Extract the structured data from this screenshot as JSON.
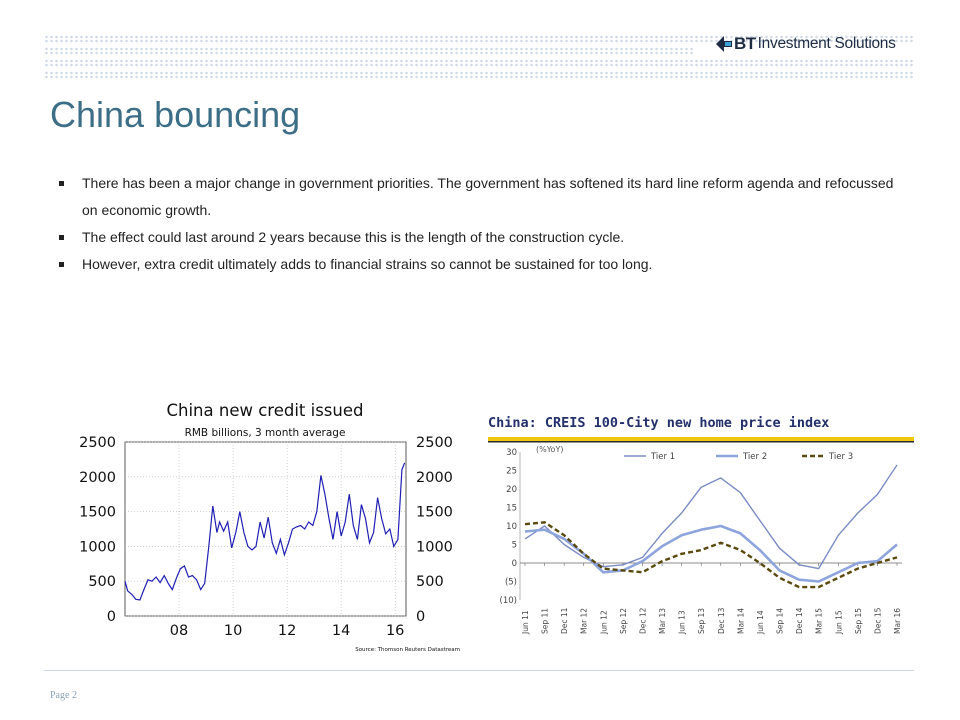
{
  "header": {
    "logo_bt": "BT",
    "logo_text": "Investment Solutions"
  },
  "title": "China bouncing",
  "bullets": [
    "There has been a major change in government priorities.  The government has softened its hard line reform agenda and refocussed on economic growth.",
    "The effect could last around 2 years because this is the length of the construction cycle.",
    "However, extra credit ultimately adds to financial strains so cannot be sustained for too long."
  ],
  "chart_data": [
    {
      "type": "line",
      "title": "China new credit issued",
      "subtitle": "RMB billions, 3 month average",
      "source": "Source: Thomson Reuters Datastream",
      "y_ticks": [
        "2500",
        "2000",
        "1500",
        "1000",
        "500",
        "0"
      ],
      "x_ticks": [
        "08",
        "10",
        "12",
        "14",
        "16"
      ],
      "ylim": [
        0,
        2500
      ],
      "xlim": [
        2006.0,
        2016.4
      ],
      "line_color": "#1f1fb4",
      "series": [
        {
          "x": [
            2006.0,
            2006.1,
            2006.25,
            2006.4,
            2006.55,
            2006.7,
            2006.85,
            2007.0,
            2007.15,
            2007.3,
            2007.45,
            2007.6,
            2007.75,
            2007.9,
            2008.05,
            2008.2,
            2008.35,
            2008.5,
            2008.65,
            2008.8,
            2008.95,
            2009.1,
            2009.25,
            2009.4,
            2009.5,
            2009.65,
            2009.8,
            2009.95,
            2010.1,
            2010.25,
            2010.4,
            2010.55,
            2010.7,
            2010.85,
            2011.0,
            2011.15,
            2011.3,
            2011.45,
            2011.6,
            2011.75,
            2011.9,
            2012.05,
            2012.2,
            2012.35,
            2012.5,
            2012.65,
            2012.8,
            2012.95,
            2013.1,
            2013.25,
            2013.4,
            2013.55,
            2013.7,
            2013.85,
            2014.0,
            2014.15,
            2014.3,
            2014.45,
            2014.6,
            2014.75,
            2014.9,
            2015.05,
            2015.2,
            2015.35,
            2015.5,
            2015.65,
            2015.8,
            2015.95,
            2016.1,
            2016.25,
            2016.35
          ],
          "y": [
            500,
            360,
            310,
            240,
            230,
            380,
            520,
            500,
            560,
            480,
            580,
            470,
            380,
            540,
            680,
            720,
            560,
            580,
            520,
            380,
            470,
            1000,
            1580,
            1200,
            1350,
            1220,
            1350,
            980,
            1200,
            1500,
            1200,
            1000,
            950,
            1000,
            1350,
            1120,
            1420,
            1050,
            900,
            1100,
            880,
            1050,
            1250,
            1280,
            1300,
            1250,
            1350,
            1300,
            1500,
            2020,
            1750,
            1400,
            1100,
            1500,
            1150,
            1350,
            1750,
            1300,
            1100,
            1600,
            1400,
            1050,
            1200,
            1700,
            1400,
            1180,
            1250,
            1000,
            1100,
            2100,
            2200
          ]
        }
      ]
    },
    {
      "type": "line",
      "title": "China: CREIS 100-City new home price index",
      "ylabel": "(%YoY)",
      "y_ticks": [
        "30",
        "25",
        "20",
        "15",
        "10",
        "5",
        "0",
        "(5)",
        "(10)"
      ],
      "ylim": [
        -10,
        30
      ],
      "x_ticks": [
        "Jun 11",
        "Sep 11",
        "Dec 11",
        "Mar 12",
        "Jun 12",
        "Sep 12",
        "Dec 12",
        "Mar 13",
        "Jun 13",
        "Sep 13",
        "Dec 13",
        "Mar 14",
        "Jun 14",
        "Sep 14",
        "Dec 14",
        "Mar 15",
        "Jun 15",
        "Sep 15",
        "Dec 15",
        "Mar 16"
      ],
      "series": [
        {
          "name": "Tier 1",
          "color": "#7b8bc4",
          "values": [
            6.5,
            10,
            5,
            1.5,
            -1,
            -0.5,
            1.5,
            8,
            13.5,
            20.5,
            23,
            19,
            11.5,
            4,
            -0.5,
            -1.5,
            7.5,
            13.5,
            18.5,
            26.5
          ]
        },
        {
          "name": "Tier 2",
          "color": "#8ea4dd",
          "values": [
            8.5,
            9,
            6.5,
            2.5,
            -2.5,
            -2,
            0.5,
            4.5,
            7.5,
            9,
            10,
            8,
            3.5,
            -2,
            -4.5,
            -5,
            -2.5,
            0,
            0.5,
            5
          ]
        },
        {
          "name": "Tier 3",
          "color": "#5a4a10",
          "values": [
            10.5,
            11,
            7.5,
            2.5,
            -1.5,
            -2,
            -2.5,
            0.5,
            2.5,
            3.5,
            5.5,
            3.5,
            0,
            -4,
            -6.5,
            -6.5,
            -4,
            -1.5,
            0,
            1.5
          ]
        }
      ]
    }
  ],
  "footer": {
    "page": "Page 2"
  }
}
